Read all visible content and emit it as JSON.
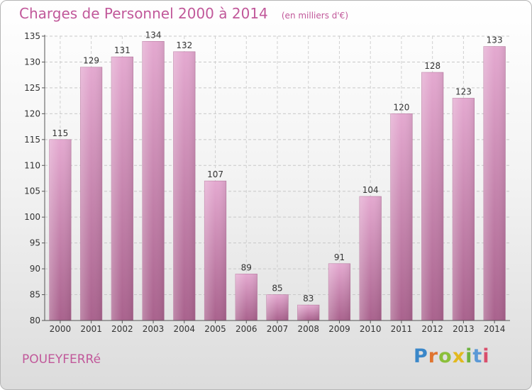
{
  "chart_data": {
    "type": "bar",
    "title": "Charges de Personnel 2000 à 2014",
    "subtitle": "(en milliers d'€)",
    "categories": [
      "2000",
      "2001",
      "2002",
      "2003",
      "2004",
      "2005",
      "2006",
      "2007",
      "2008",
      "2009",
      "2010",
      "2011",
      "2012",
      "2013",
      "2014"
    ],
    "values": [
      115,
      129,
      131,
      134,
      132,
      107,
      89,
      85,
      83,
      91,
      104,
      120,
      128,
      123,
      133
    ],
    "ylim": [
      80,
      135
    ],
    "yticks": [
      80,
      85,
      90,
      95,
      100,
      105,
      110,
      115,
      120,
      125,
      130,
      135
    ],
    "grid": true,
    "bar_color": "#c36b9f"
  },
  "footer": {
    "commune": "POUEYFERRé",
    "logo_text": "Proxiti"
  }
}
